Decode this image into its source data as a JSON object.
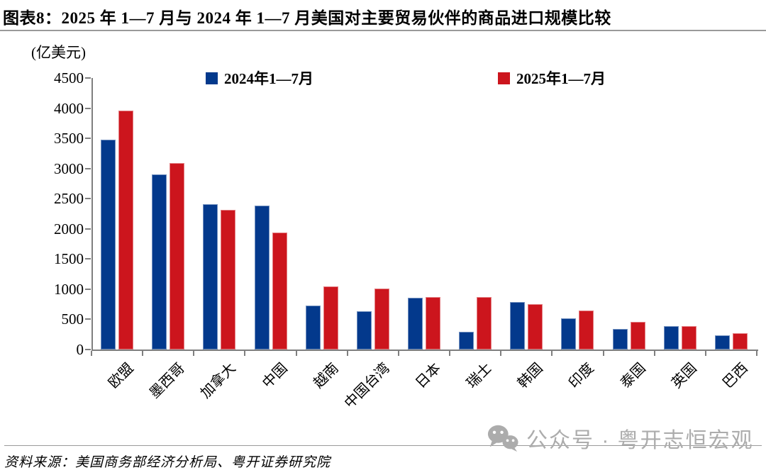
{
  "header": {
    "title": "图表8：2025 年 1—7 月与 2024 年 1—7 月美国对主要贸易伙伴的商品进口规模比较"
  },
  "chart_data": {
    "type": "bar",
    "title": "2025年1—7月与2024年1—7月美国对主要贸易伙伴的商品进口规模比较",
    "unit_label": "(亿美元)",
    "ylabel": "亿美元",
    "xlabel": "",
    "ylim": [
      0,
      4500
    ],
    "ytick_step": 500,
    "grid": false,
    "legend_position": "top",
    "categories": [
      "欧盟",
      "墨西哥",
      "加拿大",
      "中国",
      "越南",
      "中国台湾",
      "日本",
      "瑞士",
      "韩国",
      "印度",
      "泰国",
      "英国",
      "巴西"
    ],
    "series": [
      {
        "name": "2024年1—7月",
        "color": "#03398C",
        "values": [
          3480,
          2900,
          2410,
          2390,
          730,
          640,
          860,
          290,
          785,
          515,
          345,
          390,
          240
        ]
      },
      {
        "name": "2025年1—7月",
        "color": "#CC151D",
        "values": [
          3960,
          3090,
          2310,
          1940,
          1050,
          1010,
          875,
          865,
          755,
          650,
          460,
          390,
          265
        ]
      }
    ]
  },
  "footer": {
    "source": "资料来源：美国商务部经济分析局、粤开证券研究院"
  },
  "watermark": {
    "icon": "wechat-icon",
    "text": "公众号 · 粤开志恒宏观",
    "color": "#acacac"
  },
  "colors": {
    "axis": "#7f7f7f",
    "rule": "#9a9a9a",
    "bar_2024": "#03398C",
    "bar_2025": "#CC151D"
  }
}
